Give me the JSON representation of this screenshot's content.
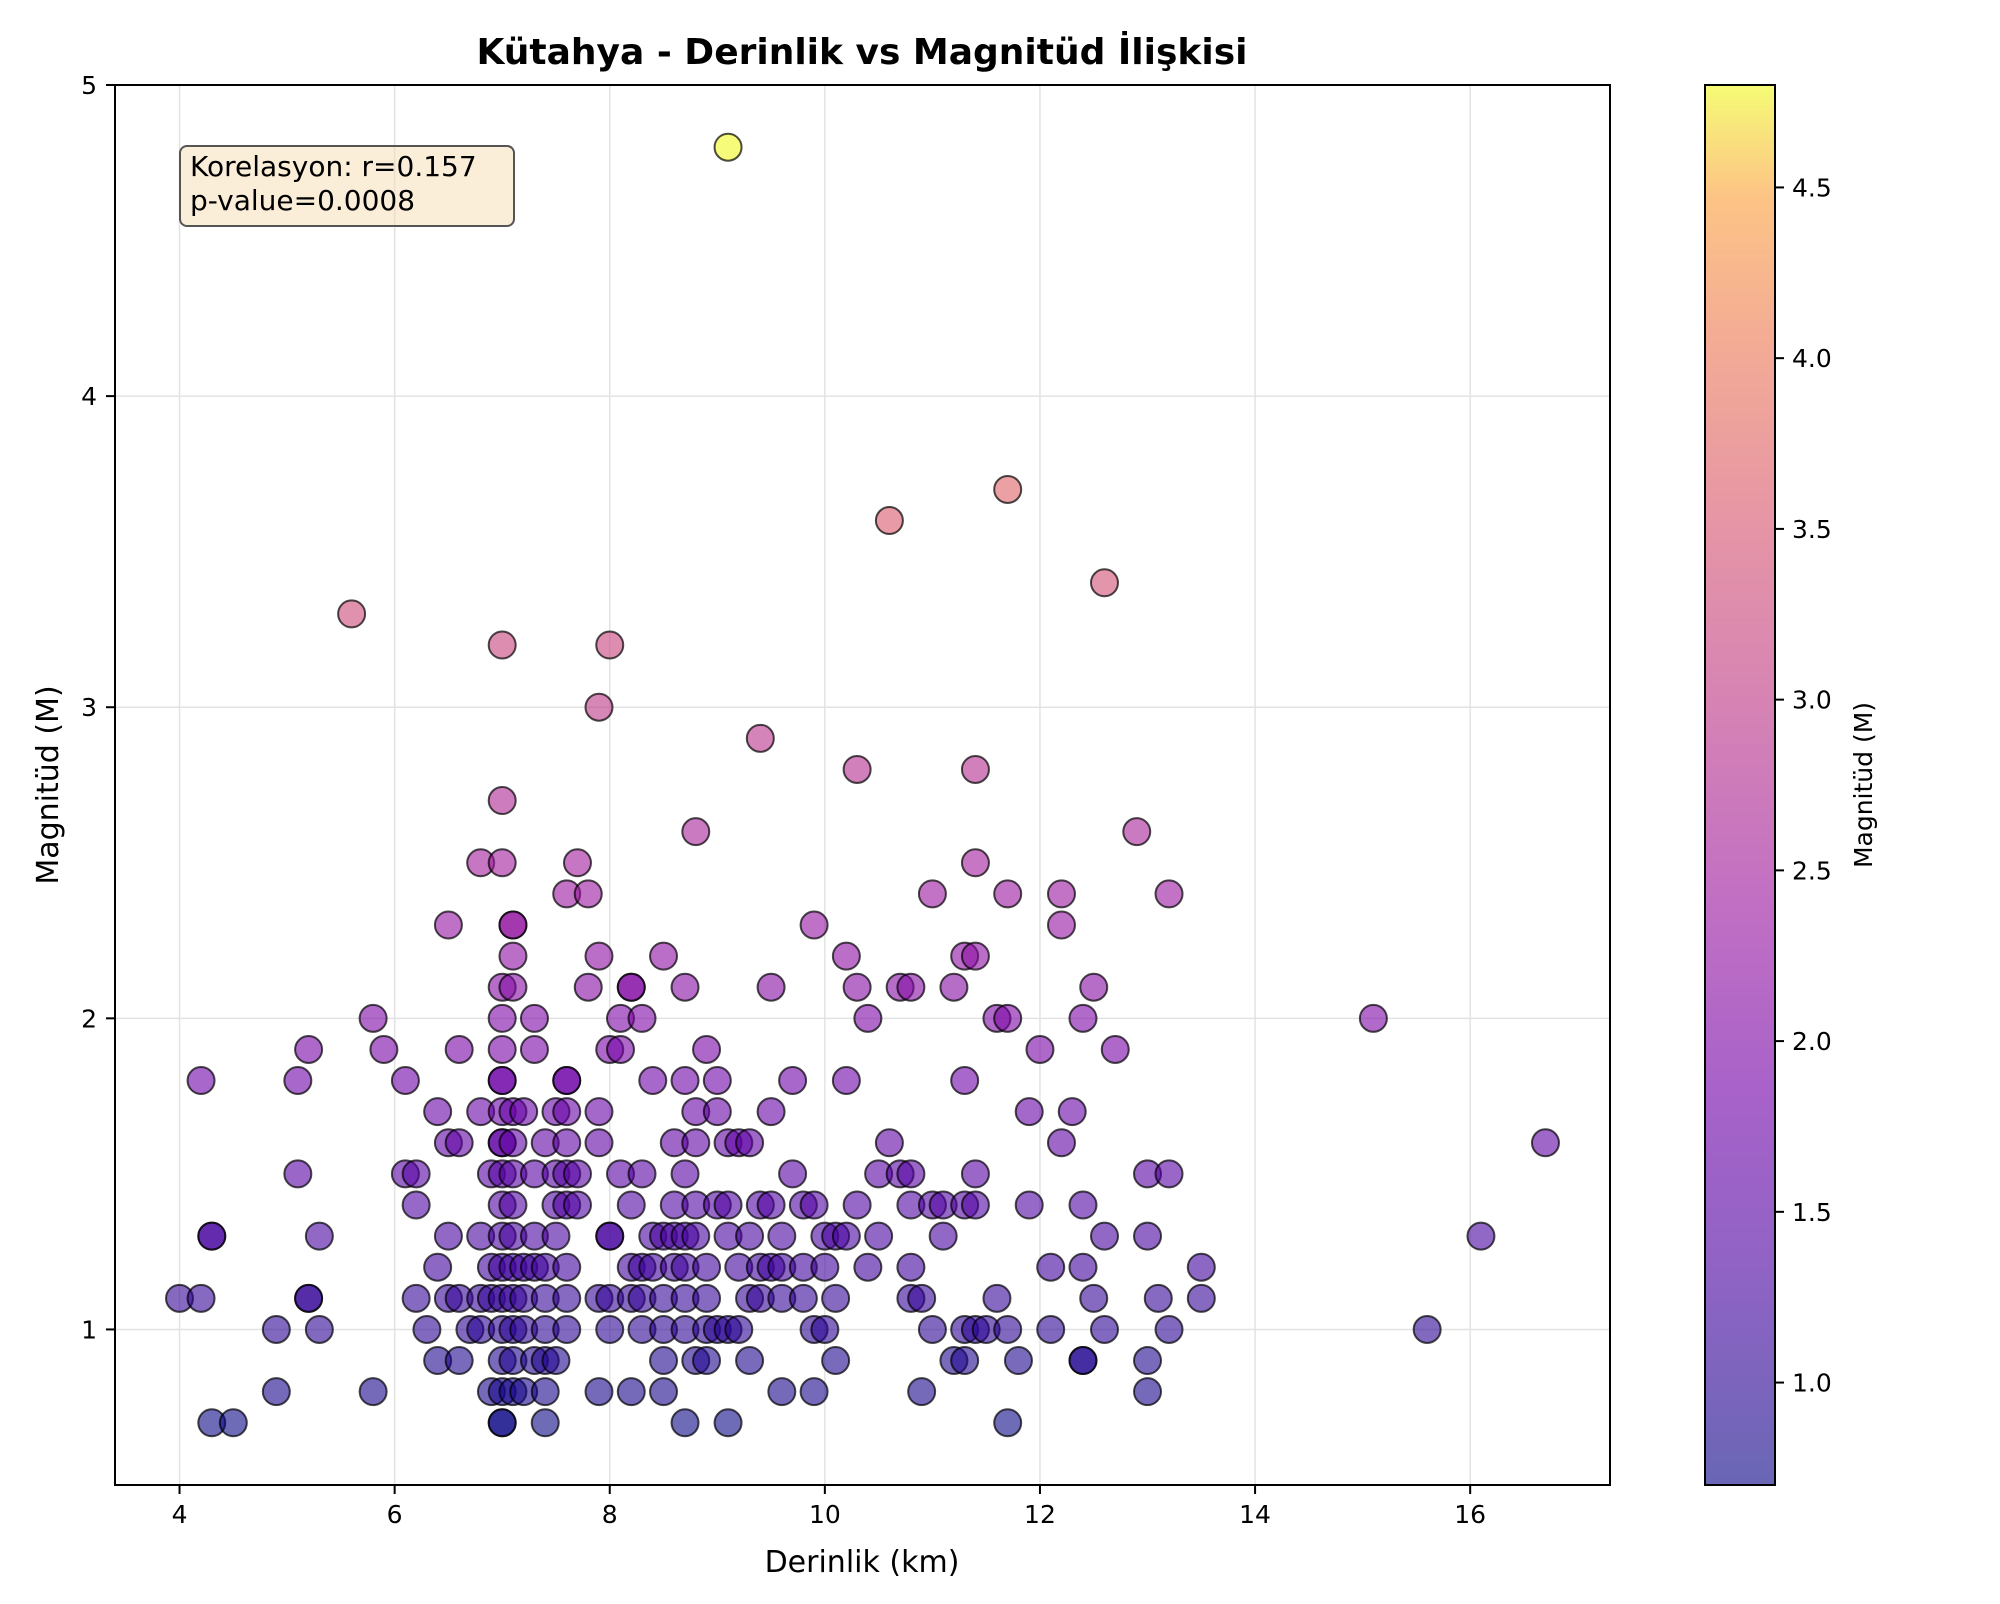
{
  "chart_data": {
    "type": "scatter",
    "title": "Kütahya - Derinlik vs Magnitüd İlişkisi",
    "xlabel": "Derinlik (km)",
    "ylabel": "Magnitüd (M)",
    "xlim": [
      3.4,
      17.3
    ],
    "ylim": [
      0.5,
      5.0
    ],
    "xticks": [
      4,
      6,
      8,
      10,
      12,
      14,
      16
    ],
    "yticks": [
      1,
      2,
      3,
      4,
      5
    ],
    "grid": true,
    "colormap": "plasma",
    "colorbar": {
      "label": "Magnitüd (M)",
      "range": [
        0.7,
        4.8
      ],
      "ticks": [
        "1.0",
        "1.5",
        "2.0",
        "2.5",
        "3.0",
        "3.5",
        "4.0",
        "4.5"
      ],
      "tick_values": [
        1.0,
        1.5,
        2.0,
        2.5,
        3.0,
        3.5,
        4.0,
        4.5
      ]
    },
    "annotation": [
      "Korelasyon: r=0.157",
      "p-value=0.0008"
    ],
    "points": [
      [
        9.1,
        4.8
      ],
      [
        11.7,
        3.7
      ],
      [
        10.6,
        3.6
      ],
      [
        12.6,
        3.4
      ],
      [
        5.6,
        3.3
      ],
      [
        7.0,
        3.2
      ],
      [
        8.0,
        3.2
      ],
      [
        7.9,
        3.0
      ],
      [
        9.4,
        2.9
      ],
      [
        10.3,
        2.8
      ],
      [
        11.4,
        2.8
      ],
      [
        7.0,
        2.7
      ],
      [
        8.8,
        2.6
      ],
      [
        12.9,
        2.6
      ],
      [
        6.8,
        2.5
      ],
      [
        7.0,
        2.5
      ],
      [
        7.7,
        2.5
      ],
      [
        11.4,
        2.5
      ],
      [
        7.6,
        2.4
      ],
      [
        7.8,
        2.4
      ],
      [
        11.0,
        2.4
      ],
      [
        11.7,
        2.4
      ],
      [
        12.2,
        2.4
      ],
      [
        13.2,
        2.4
      ],
      [
        6.5,
        2.3
      ],
      [
        7.1,
        2.3
      ],
      [
        7.1,
        2.3
      ],
      [
        9.9,
        2.3
      ],
      [
        12.2,
        2.3
      ],
      [
        7.1,
        2.2
      ],
      [
        7.9,
        2.2
      ],
      [
        8.5,
        2.2
      ],
      [
        10.2,
        2.2
      ],
      [
        11.3,
        2.2
      ],
      [
        11.4,
        2.2
      ],
      [
        7.0,
        2.1
      ],
      [
        7.1,
        2.1
      ],
      [
        7.8,
        2.1
      ],
      [
        8.2,
        2.1
      ],
      [
        8.2,
        2.1
      ],
      [
        8.7,
        2.1
      ],
      [
        9.5,
        2.1
      ],
      [
        10.3,
        2.1
      ],
      [
        10.7,
        2.1
      ],
      [
        10.8,
        2.1
      ],
      [
        11.2,
        2.1
      ],
      [
        12.5,
        2.1
      ],
      [
        5.8,
        2.0
      ],
      [
        7.0,
        2.0
      ],
      [
        7.3,
        2.0
      ],
      [
        8.1,
        2.0
      ],
      [
        8.3,
        2.0
      ],
      [
        10.4,
        2.0
      ],
      [
        11.6,
        2.0
      ],
      [
        11.7,
        2.0
      ],
      [
        12.4,
        2.0
      ],
      [
        15.1,
        2.0
      ],
      [
        5.2,
        1.9
      ],
      [
        5.9,
        1.9
      ],
      [
        6.6,
        1.9
      ],
      [
        7.0,
        1.9
      ],
      [
        7.3,
        1.9
      ],
      [
        8.0,
        1.9
      ],
      [
        8.1,
        1.9
      ],
      [
        8.9,
        1.9
      ],
      [
        12.0,
        1.9
      ],
      [
        12.7,
        1.9
      ],
      [
        4.2,
        1.8
      ],
      [
        5.1,
        1.8
      ],
      [
        6.1,
        1.8
      ],
      [
        7.0,
        1.8
      ],
      [
        7.0,
        1.8
      ],
      [
        7.6,
        1.8
      ],
      [
        7.6,
        1.8
      ],
      [
        8.4,
        1.8
      ],
      [
        8.7,
        1.8
      ],
      [
        9.0,
        1.8
      ],
      [
        9.7,
        1.8
      ],
      [
        10.2,
        1.8
      ],
      [
        11.3,
        1.8
      ],
      [
        6.4,
        1.7
      ],
      [
        6.8,
        1.7
      ],
      [
        7.0,
        1.7
      ],
      [
        7.1,
        1.7
      ],
      [
        7.2,
        1.7
      ],
      [
        7.5,
        1.7
      ],
      [
        7.6,
        1.7
      ],
      [
        7.9,
        1.7
      ],
      [
        8.8,
        1.7
      ],
      [
        9.0,
        1.7
      ],
      [
        9.5,
        1.7
      ],
      [
        11.9,
        1.7
      ],
      [
        12.3,
        1.7
      ],
      [
        6.5,
        1.6
      ],
      [
        6.6,
        1.6
      ],
      [
        7.0,
        1.6
      ],
      [
        7.0,
        1.6
      ],
      [
        7.1,
        1.6
      ],
      [
        7.4,
        1.6
      ],
      [
        7.6,
        1.6
      ],
      [
        7.9,
        1.6
      ],
      [
        8.6,
        1.6
      ],
      [
        8.8,
        1.6
      ],
      [
        9.1,
        1.6
      ],
      [
        9.2,
        1.6
      ],
      [
        9.3,
        1.6
      ],
      [
        10.6,
        1.6
      ],
      [
        12.2,
        1.6
      ],
      [
        16.7,
        1.6
      ],
      [
        5.1,
        1.5
      ],
      [
        6.1,
        1.5
      ],
      [
        6.2,
        1.5
      ],
      [
        6.9,
        1.5
      ],
      [
        7.0,
        1.5
      ],
      [
        7.1,
        1.5
      ],
      [
        7.3,
        1.5
      ],
      [
        7.5,
        1.5
      ],
      [
        7.6,
        1.5
      ],
      [
        7.7,
        1.5
      ],
      [
        8.1,
        1.5
      ],
      [
        8.3,
        1.5
      ],
      [
        8.7,
        1.5
      ],
      [
        9.7,
        1.5
      ],
      [
        10.5,
        1.5
      ],
      [
        10.7,
        1.5
      ],
      [
        10.8,
        1.5
      ],
      [
        11.4,
        1.5
      ],
      [
        13.0,
        1.5
      ],
      [
        13.2,
        1.5
      ],
      [
        6.2,
        1.4
      ],
      [
        7.0,
        1.4
      ],
      [
        7.1,
        1.4
      ],
      [
        7.5,
        1.4
      ],
      [
        7.6,
        1.4
      ],
      [
        7.7,
        1.4
      ],
      [
        8.2,
        1.4
      ],
      [
        8.6,
        1.4
      ],
      [
        8.8,
        1.4
      ],
      [
        9.0,
        1.4
      ],
      [
        9.1,
        1.4
      ],
      [
        9.4,
        1.4
      ],
      [
        9.5,
        1.4
      ],
      [
        9.8,
        1.4
      ],
      [
        9.9,
        1.4
      ],
      [
        10.3,
        1.4
      ],
      [
        10.8,
        1.4
      ],
      [
        11.0,
        1.4
      ],
      [
        11.1,
        1.4
      ],
      [
        11.3,
        1.4
      ],
      [
        11.4,
        1.4
      ],
      [
        11.9,
        1.4
      ],
      [
        12.4,
        1.4
      ],
      [
        4.3,
        1.3
      ],
      [
        4.3,
        1.3
      ],
      [
        5.3,
        1.3
      ],
      [
        6.5,
        1.3
      ],
      [
        6.8,
        1.3
      ],
      [
        7.0,
        1.3
      ],
      [
        7.1,
        1.3
      ],
      [
        7.3,
        1.3
      ],
      [
        7.5,
        1.3
      ],
      [
        8.0,
        1.3
      ],
      [
        8.0,
        1.3
      ],
      [
        8.4,
        1.3
      ],
      [
        8.5,
        1.3
      ],
      [
        8.6,
        1.3
      ],
      [
        8.7,
        1.3
      ],
      [
        8.8,
        1.3
      ],
      [
        9.1,
        1.3
      ],
      [
        9.3,
        1.3
      ],
      [
        9.6,
        1.3
      ],
      [
        10.0,
        1.3
      ],
      [
        10.1,
        1.3
      ],
      [
        10.2,
        1.3
      ],
      [
        10.5,
        1.3
      ],
      [
        11.1,
        1.3
      ],
      [
        12.6,
        1.3
      ],
      [
        13.0,
        1.3
      ],
      [
        16.1,
        1.3
      ],
      [
        6.4,
        1.2
      ],
      [
        6.9,
        1.2
      ],
      [
        7.0,
        1.2
      ],
      [
        7.1,
        1.2
      ],
      [
        7.2,
        1.2
      ],
      [
        7.3,
        1.2
      ],
      [
        7.4,
        1.2
      ],
      [
        7.6,
        1.2
      ],
      [
        8.2,
        1.2
      ],
      [
        8.3,
        1.2
      ],
      [
        8.4,
        1.2
      ],
      [
        8.6,
        1.2
      ],
      [
        8.7,
        1.2
      ],
      [
        8.9,
        1.2
      ],
      [
        9.2,
        1.2
      ],
      [
        9.4,
        1.2
      ],
      [
        9.5,
        1.2
      ],
      [
        9.6,
        1.2
      ],
      [
        9.8,
        1.2
      ],
      [
        10.0,
        1.2
      ],
      [
        10.4,
        1.2
      ],
      [
        10.8,
        1.2
      ],
      [
        12.1,
        1.2
      ],
      [
        12.4,
        1.2
      ],
      [
        13.5,
        1.2
      ],
      [
        4.0,
        1.1
      ],
      [
        4.2,
        1.1
      ],
      [
        5.2,
        1.1
      ],
      [
        5.2,
        1.1
      ],
      [
        6.2,
        1.1
      ],
      [
        6.5,
        1.1
      ],
      [
        6.6,
        1.1
      ],
      [
        6.8,
        1.1
      ],
      [
        6.9,
        1.1
      ],
      [
        7.0,
        1.1
      ],
      [
        7.1,
        1.1
      ],
      [
        7.2,
        1.1
      ],
      [
        7.4,
        1.1
      ],
      [
        7.6,
        1.1
      ],
      [
        7.9,
        1.1
      ],
      [
        8.0,
        1.1
      ],
      [
        8.2,
        1.1
      ],
      [
        8.3,
        1.1
      ],
      [
        8.5,
        1.1
      ],
      [
        8.7,
        1.1
      ],
      [
        8.9,
        1.1
      ],
      [
        9.3,
        1.1
      ],
      [
        9.4,
        1.1
      ],
      [
        9.6,
        1.1
      ],
      [
        9.8,
        1.1
      ],
      [
        10.1,
        1.1
      ],
      [
        10.8,
        1.1
      ],
      [
        10.9,
        1.1
      ],
      [
        11.6,
        1.1
      ],
      [
        12.5,
        1.1
      ],
      [
        13.1,
        1.1
      ],
      [
        13.5,
        1.1
      ],
      [
        4.9,
        1.0
      ],
      [
        5.3,
        1.0
      ],
      [
        6.3,
        1.0
      ],
      [
        6.7,
        1.0
      ],
      [
        6.8,
        1.0
      ],
      [
        7.0,
        1.0
      ],
      [
        7.1,
        1.0
      ],
      [
        7.2,
        1.0
      ],
      [
        7.4,
        1.0
      ],
      [
        7.6,
        1.0
      ],
      [
        8.0,
        1.0
      ],
      [
        8.3,
        1.0
      ],
      [
        8.5,
        1.0
      ],
      [
        8.7,
        1.0
      ],
      [
        8.9,
        1.0
      ],
      [
        9.0,
        1.0
      ],
      [
        9.1,
        1.0
      ],
      [
        9.2,
        1.0
      ],
      [
        9.9,
        1.0
      ],
      [
        10.0,
        1.0
      ],
      [
        11.0,
        1.0
      ],
      [
        11.3,
        1.0
      ],
      [
        11.4,
        1.0
      ],
      [
        11.5,
        1.0
      ],
      [
        11.7,
        1.0
      ],
      [
        12.1,
        1.0
      ],
      [
        12.6,
        1.0
      ],
      [
        13.2,
        1.0
      ],
      [
        15.6,
        1.0
      ],
      [
        6.4,
        0.9
      ],
      [
        6.6,
        0.9
      ],
      [
        7.0,
        0.9
      ],
      [
        7.1,
        0.9
      ],
      [
        7.3,
        0.9
      ],
      [
        7.4,
        0.9
      ],
      [
        7.5,
        0.9
      ],
      [
        8.5,
        0.9
      ],
      [
        8.8,
        0.9
      ],
      [
        8.9,
        0.9
      ],
      [
        9.3,
        0.9
      ],
      [
        10.1,
        0.9
      ],
      [
        11.2,
        0.9
      ],
      [
        11.3,
        0.9
      ],
      [
        11.8,
        0.9
      ],
      [
        12.4,
        0.9
      ],
      [
        12.4,
        0.9
      ],
      [
        13.0,
        0.9
      ],
      [
        4.9,
        0.8
      ],
      [
        5.8,
        0.8
      ],
      [
        6.9,
        0.8
      ],
      [
        7.0,
        0.8
      ],
      [
        7.1,
        0.8
      ],
      [
        7.2,
        0.8
      ],
      [
        7.4,
        0.8
      ],
      [
        7.9,
        0.8
      ],
      [
        8.2,
        0.8
      ],
      [
        8.5,
        0.8
      ],
      [
        9.6,
        0.8
      ],
      [
        9.9,
        0.8
      ],
      [
        10.9,
        0.8
      ],
      [
        13.0,
        0.8
      ],
      [
        4.3,
        0.7
      ],
      [
        4.5,
        0.7
      ],
      [
        7.0,
        0.7
      ],
      [
        7.0,
        0.7
      ],
      [
        7.4,
        0.7
      ],
      [
        8.7,
        0.7
      ],
      [
        9.1,
        0.7
      ],
      [
        11.7,
        0.7
      ]
    ]
  }
}
